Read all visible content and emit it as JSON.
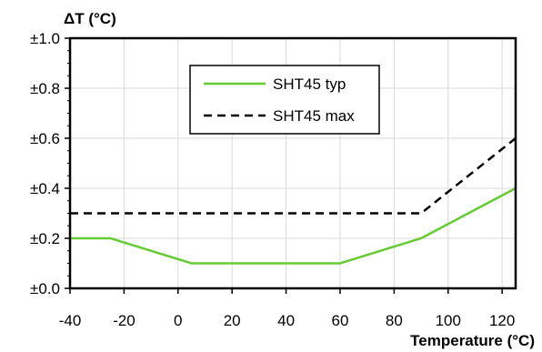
{
  "chart_data": {
    "type": "line",
    "xlabel": "Temperature (°C)",
    "ylabel": "ΔT (°C)",
    "xlim": [
      -40,
      125
    ],
    "ylim": [
      0,
      1.0
    ],
    "x_ticks": [
      -40,
      -20,
      0,
      20,
      40,
      60,
      80,
      100,
      120
    ],
    "x_tick_labels": [
      "-40",
      "-20",
      "0",
      "20",
      "40",
      "60",
      "80",
      "100",
      "120"
    ],
    "y_ticks": [
      0,
      0.2,
      0.4,
      0.6,
      0.8,
      1.0
    ],
    "y_tick_labels": [
      "±0.0",
      "±0.2",
      "±0.4",
      "±0.6",
      "±0.8",
      "±1.0"
    ],
    "grid": true,
    "legend_position": "top-center",
    "series": [
      {
        "name": "SHT45 typ",
        "color": "#66cc33",
        "style": "solid",
        "x": [
          -40,
          -25,
          5,
          60,
          90,
          125
        ],
        "y": [
          0.2,
          0.2,
          0.1,
          0.1,
          0.2,
          0.4
        ]
      },
      {
        "name": "SHT45 max",
        "color": "#000000",
        "style": "dashed",
        "x": [
          -40,
          90,
          125
        ],
        "y": [
          0.3,
          0.3,
          0.6
        ]
      }
    ]
  }
}
